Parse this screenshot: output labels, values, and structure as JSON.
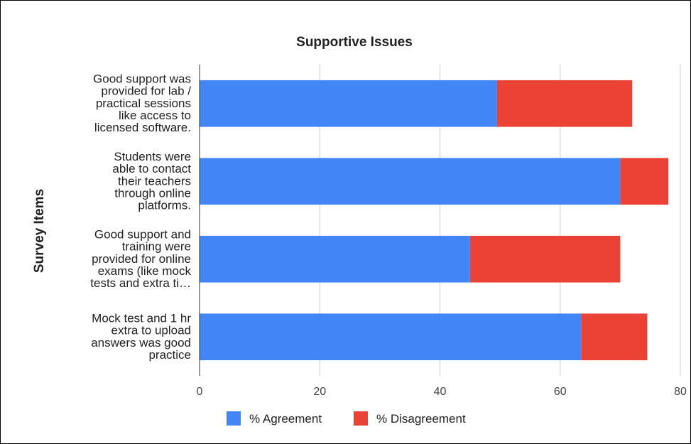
{
  "chart_data": {
    "type": "bar",
    "orientation": "horizontal",
    "stacked": true,
    "title": "Supportive Issues",
    "xlabel": "",
    "ylabel": "Survey Items",
    "xlim": [
      0,
      80
    ],
    "xticks": [
      "0",
      "20",
      "40",
      "60",
      "80"
    ],
    "grid": true,
    "legend_position": "bottom",
    "categories": [
      [
        "Good support was",
        "provided for lab /",
        "practical sessions",
        "like access to",
        "licensed software."
      ],
      [
        "Students were",
        "able to contact",
        "their teachers",
        "through online",
        "platforms."
      ],
      [
        "Good support and",
        "training were",
        "provided for online",
        "exams (like mock",
        "tests and extra ti…"
      ],
      [
        "Mock test and 1 hr",
        "extra to upload",
        "answers was good",
        "practice"
      ]
    ],
    "series": [
      {
        "name": "% Agreement",
        "color": "#4285f4",
        "values": [
          49.5,
          70,
          45,
          63.5
        ]
      },
      {
        "name": "% Disagreement",
        "color": "#ea4335",
        "values": [
          22.5,
          8,
          25,
          11
        ]
      }
    ]
  }
}
